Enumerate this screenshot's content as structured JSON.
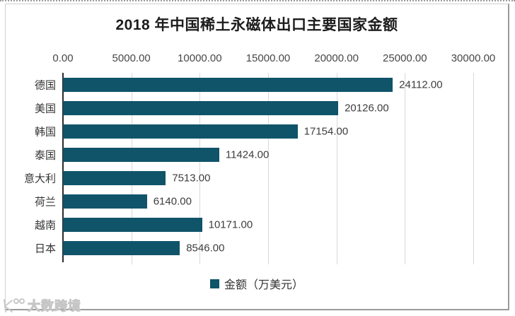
{
  "watermark": {
    "text": "大数跨境"
  },
  "chart_data": {
    "type": "bar",
    "orientation": "horizontal",
    "title": "2018 年中国稀土永磁体出口主要国家金额",
    "categories": [
      "德国",
      "美国",
      "韩国",
      "泰国",
      "意大利",
      "荷兰",
      "越南",
      "日本"
    ],
    "values": [
      24112,
      20126,
      17154,
      11424,
      7513,
      6140,
      10171,
      8546
    ],
    "value_labels": [
      "24112.00",
      "20126.00",
      "17154.00",
      "11424.00",
      "7513.00",
      "6140.00",
      "10171.00",
      "8546.00"
    ],
    "xlabel": "",
    "ylabel": "",
    "xlim": [
      0,
      30000
    ],
    "x_ticks": [
      0,
      5000,
      10000,
      15000,
      20000,
      25000,
      30000
    ],
    "x_tick_labels": [
      "0.00",
      "5000.00",
      "10000.00",
      "15000.00",
      "20000.00",
      "25000.00",
      "30000.00"
    ],
    "grid": true,
    "bar_color": "#10546a",
    "axis_color": "#2b2b2b",
    "grid_color": "#d9d9d9",
    "legend": {
      "label": "金额（万美元）",
      "position": "bottom"
    }
  }
}
